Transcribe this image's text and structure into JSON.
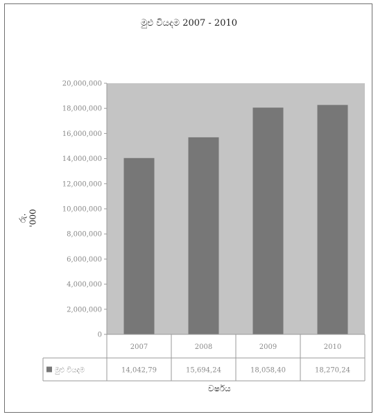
{
  "chart_data": {
    "type": "bar",
    "title": "මුළු වියදම  2007 - 2010",
    "ylabel": "රු. '000",
    "xlabel": "වර්ෂය",
    "categories": [
      "2007",
      "2008",
      "2009",
      "2010"
    ],
    "series": [
      {
        "name": "මුළු වියදම",
        "values": [
          14042.79,
          15694.24,
          18058.4,
          18270.24
        ],
        "labels": [
          "14,042,79",
          "15,694,24",
          "18,058,40",
          "18,270,24"
        ]
      }
    ],
    "ylim": [
      0,
      20000000
    ],
    "yticks": [
      0,
      2000000,
      4000000,
      6000000,
      8000000,
      10000000,
      12000000,
      14000000,
      16000000,
      18000000,
      20000000
    ],
    "ytick_labels": [
      "0",
      "2,000,000",
      "4,000,000",
      "6,000,000",
      "8,000,000",
      "10,000,000",
      "12,000,000",
      "14,000,000",
      "16,000,000",
      "18,000,000",
      "20,000,000"
    ],
    "grid": false,
    "legend": "data-table",
    "colors": {
      "plot_background": "#c4c4c4",
      "bar": "#777777",
      "axis": "#9a9a9a"
    }
  }
}
